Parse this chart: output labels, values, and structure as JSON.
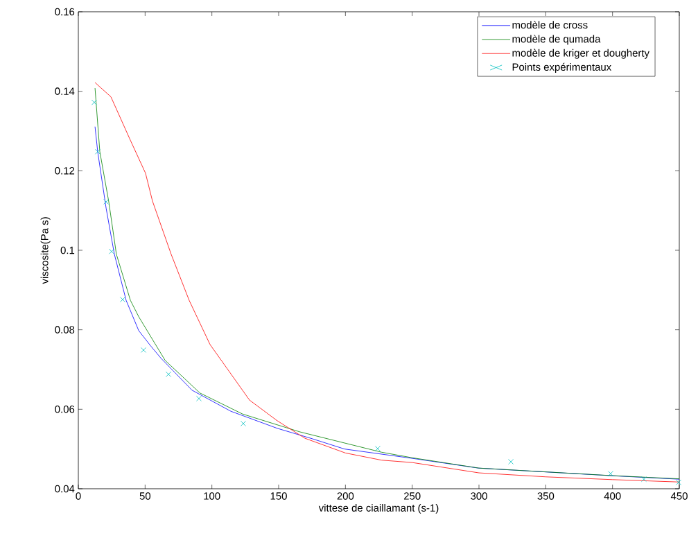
{
  "chart_data": {
    "type": "line",
    "xlabel": "vittese de ciaillamant (s-1)",
    "ylabel": "viscosite(Pa s)",
    "xlim": [
      0,
      450
    ],
    "ylim": [
      0.04,
      0.16
    ],
    "xticks": [
      0,
      50,
      100,
      150,
      200,
      250,
      300,
      350,
      400,
      450
    ],
    "yticks": [
      0.04,
      0.06,
      0.08,
      0.1,
      0.12,
      0.14,
      0.16
    ],
    "grid": false,
    "legend": "top right",
    "series": [
      {
        "name": "modèle de cross",
        "color": "#0000ff",
        "line_style": "solid",
        "x": [
          12.5,
          14.5,
          20.8,
          27,
          35.8,
          45.2,
          54.5,
          62,
          85.1,
          114.2,
          149,
          175,
          199.3,
          249,
          299.5,
          398.6,
          450
        ],
        "values": [
          0.1311,
          0.1248,
          0.1106,
          0.099,
          0.0874,
          0.0798,
          0.0758,
          0.0728,
          0.0648,
          0.0595,
          0.0552,
          0.0526,
          0.05,
          0.0477,
          0.0452,
          0.0433,
          0.0424
        ]
      },
      {
        "name": "modèle de qumada",
        "color": "#008000",
        "line_style": "solid",
        "x": [
          12.5,
          16.1,
          22.8,
          28.5,
          39,
          45.2,
          65,
          91,
          123,
          166,
          227,
          250,
          300,
          400,
          450
        ],
        "values": [
          0.1408,
          0.1248,
          0.1122,
          0.099,
          0.0874,
          0.0833,
          0.0723,
          0.0641,
          0.0588,
          0.0543,
          0.0492,
          0.0478,
          0.0452,
          0.0433,
          0.0425
        ]
      },
      {
        "name": "modèle de kriger et dougherty",
        "color": "#ff0000",
        "line_style": "solid",
        "x": [
          12.5,
          24.4,
          38.4,
          50.3,
          55.5,
          69.5,
          83,
          98.6,
          128.2,
          149,
          169.7,
          200,
          227,
          250,
          300,
          350,
          400,
          450
        ],
        "values": [
          0.1422,
          0.1386,
          0.1281,
          0.1194,
          0.1124,
          0.099,
          0.0874,
          0.0763,
          0.0623,
          0.0571,
          0.0527,
          0.049,
          0.0472,
          0.0466,
          0.044,
          0.043,
          0.0423,
          0.0417
        ]
      },
      {
        "name": "Points expérimentaux",
        "color": "#00bfbf",
        "type": "scatter",
        "marker": "cross",
        "x": [
          11.9,
          14.5,
          20.8,
          24.9,
          33.2,
          48.8,
          67.5,
          90.3,
          123.5,
          224.2,
          323.9,
          398.6,
          423.5,
          449.5
        ],
        "values": [
          0.1372,
          0.1248,
          0.1122,
          0.0997,
          0.0876,
          0.0749,
          0.0688,
          0.0627,
          0.0564,
          0.0501,
          0.0468,
          0.0438,
          0.0424,
          0.0416
        ]
      }
    ]
  }
}
